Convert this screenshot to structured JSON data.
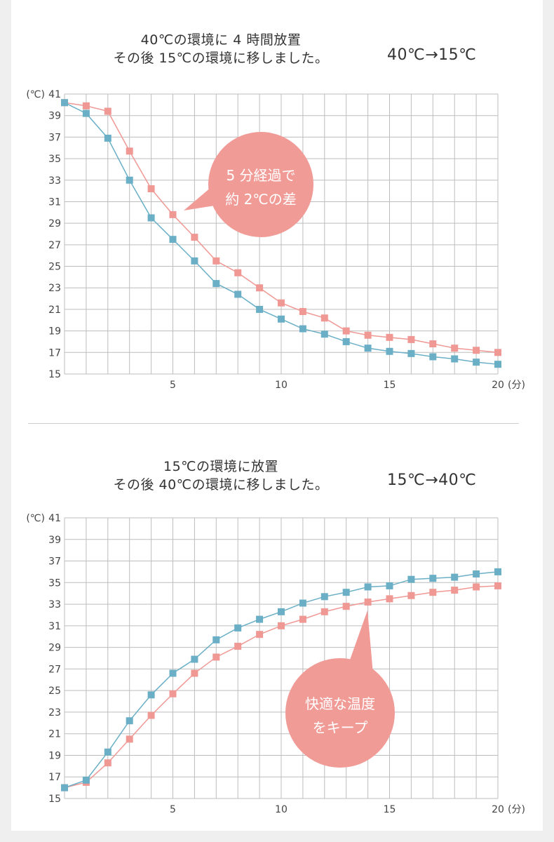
{
  "charts": [
    {
      "title_line1": "40℃の環境に 4 時間放置",
      "title_line2": "その後 15℃の環境に移しました。",
      "tag": "40℃→15℃",
      "bubble_line1": "5 分経過で",
      "bubble_line2": "約 2℃の差"
    },
    {
      "title_line1": "15℃の環境に放置",
      "title_line2": "その後 40℃の環境に移しました。",
      "tag": "15℃→40℃",
      "bubble_line1": "快適な温度",
      "bubble_line2": "をキープ"
    }
  ],
  "colors": {
    "pink": "#ef9894",
    "blue": "#6aafc6",
    "bubble": "#f19b97",
    "grid": "#bdbdbd"
  },
  "chart_data": [
    {
      "type": "line",
      "x": [
        0,
        1,
        2,
        3,
        4,
        5,
        6,
        7,
        8,
        9,
        10,
        11,
        12,
        13,
        14,
        15,
        16,
        17,
        18,
        19,
        20
      ],
      "series": [
        {
          "color": "#ef9894",
          "values": [
            40.2,
            39.9,
            39.4,
            35.7,
            32.2,
            29.8,
            27.7,
            25.5,
            24.4,
            23.0,
            21.6,
            20.8,
            20.2,
            19.0,
            18.6,
            18.4,
            18.2,
            17.8,
            17.4,
            17.2,
            17.0
          ]
        },
        {
          "color": "#6aafc6",
          "values": [
            40.2,
            39.2,
            36.9,
            33.0,
            29.5,
            27.5,
            25.5,
            23.4,
            22.4,
            21.0,
            20.1,
            19.2,
            18.7,
            18.0,
            17.4,
            17.1,
            16.9,
            16.6,
            16.4,
            16.1,
            15.9
          ]
        }
      ],
      "ylabel": "(℃)",
      "xlabel": "(分)",
      "y_ticks": [
        "15",
        "17",
        "19",
        "21",
        "23",
        "25",
        "27",
        "29",
        "31",
        "33",
        "35",
        "37",
        "39",
        "41"
      ],
      "x_ticks": [
        "5",
        "10",
        "15",
        "20"
      ],
      "xlim": [
        0,
        20
      ],
      "ylim": [
        15,
        41
      ],
      "grid": true
    },
    {
      "type": "line",
      "x": [
        0,
        1,
        2,
        3,
        4,
        5,
        6,
        7,
        8,
        9,
        10,
        11,
        12,
        13,
        14,
        15,
        16,
        17,
        18,
        19,
        20
      ],
      "series": [
        {
          "color": "#ef9894",
          "values": [
            16.0,
            16.5,
            18.3,
            20.5,
            22.7,
            24.7,
            26.6,
            28.1,
            29.1,
            30.2,
            31.0,
            31.6,
            32.3,
            32.8,
            33.2,
            33.5,
            33.8,
            34.1,
            34.3,
            34.6,
            34.7
          ]
        },
        {
          "color": "#6aafc6",
          "values": [
            16.0,
            16.7,
            19.3,
            22.2,
            24.6,
            26.6,
            27.9,
            29.7,
            30.8,
            31.6,
            32.3,
            33.1,
            33.7,
            34.1,
            34.6,
            34.7,
            35.3,
            35.4,
            35.5,
            35.8,
            36.0
          ]
        }
      ],
      "ylabel": "(℃)",
      "xlabel": "(分)",
      "y_ticks": [
        "15",
        "17",
        "19",
        "21",
        "23",
        "25",
        "27",
        "29",
        "31",
        "33",
        "35",
        "37",
        "39",
        "41"
      ],
      "x_ticks": [
        "5",
        "10",
        "15",
        "20"
      ],
      "xlim": [
        0,
        20
      ],
      "ylim": [
        15,
        41
      ],
      "grid": true
    }
  ]
}
